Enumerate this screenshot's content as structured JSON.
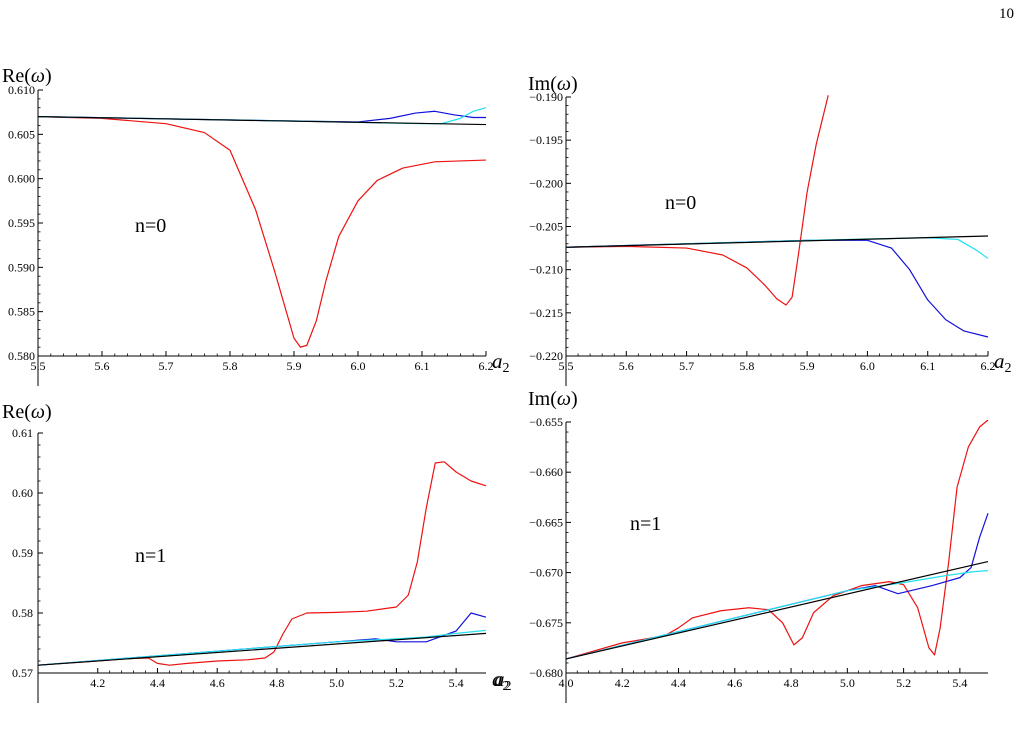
{
  "page": {
    "number": "10"
  },
  "colors": {
    "red": "#ee1111",
    "blue": "#1111dd",
    "cyan": "#22e0f0",
    "black": "#000000"
  },
  "chart_data": [
    {
      "id": "re_n0",
      "type": "line",
      "ylabel_main": "Re(",
      "ylabel_sym": "ω",
      "ylabel_close": ")",
      "xlabel_main": "a",
      "xlabel_sub": "2",
      "annotation": "n=0",
      "xlim": [
        5.5,
        6.2
      ],
      "ylim": [
        0.58,
        0.61
      ],
      "xticks": [
        5.5,
        5.6,
        5.7,
        5.8,
        5.9,
        6.0,
        6.1,
        6.2
      ],
      "xtick_labels": [
        "5.5",
        "5.6",
        "5.7",
        "5.8",
        "5.9",
        "6.0",
        "6.1",
        "6.2"
      ],
      "yticks": [
        0.58,
        0.585,
        0.59,
        0.595,
        0.6,
        0.605,
        0.61
      ],
      "ytick_labels": [
        "0.580",
        "0.585",
        "0.590",
        "0.595",
        "0.600",
        "0.605",
        "0.610"
      ],
      "series": [
        {
          "color": "red",
          "points": [
            [
              5.5,
              0.607
            ],
            [
              5.6,
              0.6068
            ],
            [
              5.7,
              0.6062
            ],
            [
              5.76,
              0.6052
            ],
            [
              5.8,
              0.6032
            ],
            [
              5.84,
              0.5965
            ],
            [
              5.87,
              0.5895
            ],
            [
              5.89,
              0.5845
            ],
            [
              5.9,
              0.582
            ],
            [
              5.91,
              0.581
            ],
            [
              5.92,
              0.5812
            ],
            [
              5.935,
              0.584
            ],
            [
              5.95,
              0.5885
            ],
            [
              5.97,
              0.5935
            ],
            [
              6.0,
              0.5975
            ],
            [
              6.03,
              0.5998
            ],
            [
              6.07,
              0.6012
            ],
            [
              6.12,
              0.6019
            ],
            [
              6.2,
              0.6021
            ]
          ]
        },
        {
          "color": "blue",
          "points": [
            [
              5.5,
              0.607
            ],
            [
              5.9,
              0.6065
            ],
            [
              6.0,
              0.6064
            ],
            [
              6.05,
              0.6068
            ],
            [
              6.09,
              0.6074
            ],
            [
              6.12,
              0.6076
            ],
            [
              6.15,
              0.6072
            ],
            [
              6.18,
              0.6069
            ],
            [
              6.2,
              0.6069
            ]
          ]
        },
        {
          "color": "cyan",
          "points": [
            [
              5.5,
              0.607
            ],
            [
              5.9,
              0.6065
            ],
            [
              6.1,
              0.6062
            ],
            [
              6.13,
              0.6062
            ],
            [
              6.16,
              0.6068
            ],
            [
              6.18,
              0.6076
            ],
            [
              6.2,
              0.608
            ]
          ]
        },
        {
          "color": "black",
          "points": [
            [
              5.5,
              0.607
            ],
            [
              6.2,
              0.6061
            ]
          ]
        }
      ]
    },
    {
      "id": "im_n0",
      "type": "line",
      "ylabel_main": "Im(",
      "ylabel_sym": "ω",
      "ylabel_close": ")",
      "xlabel_main": "a",
      "xlabel_sub": "2",
      "annotation": "n=0",
      "xlim": [
        5.5,
        6.2
      ],
      "ylim": [
        -0.22,
        -0.19
      ],
      "xticks": [
        5.5,
        5.6,
        5.7,
        5.8,
        5.9,
        6.0,
        6.1,
        6.2
      ],
      "xtick_labels": [
        "5.5",
        "5.6",
        "5.7",
        "5.8",
        "5.9",
        "6.0",
        "6.1",
        "6.2"
      ],
      "yticks": [
        -0.22,
        -0.215,
        -0.21,
        -0.205,
        -0.2,
        -0.195,
        -0.19
      ],
      "ytick_labels": [
        "−0.220",
        "−0.215",
        "−0.210",
        "−0.205",
        "−0.200",
        "−0.195",
        "−0.190"
      ],
      "series": [
        {
          "color": "red",
          "points": [
            [
              5.5,
              -0.2074
            ],
            [
              5.6,
              -0.2073
            ],
            [
              5.7,
              -0.2075
            ],
            [
              5.76,
              -0.2083
            ],
            [
              5.8,
              -0.2098
            ],
            [
              5.83,
              -0.2118
            ],
            [
              5.85,
              -0.2134
            ],
            [
              5.865,
              -0.2141
            ],
            [
              5.875,
              -0.2132
            ],
            [
              5.885,
              -0.2085
            ],
            [
              5.9,
              -0.201
            ],
            [
              5.915,
              -0.1955
            ],
            [
              5.935,
              -0.1898
            ]
          ]
        },
        {
          "color": "blue",
          "points": [
            [
              5.5,
              -0.2074
            ],
            [
              5.9,
              -0.2066
            ],
            [
              6.0,
              -0.2066
            ],
            [
              6.04,
              -0.2075
            ],
            [
              6.07,
              -0.21
            ],
            [
              6.1,
              -0.2135
            ],
            [
              6.13,
              -0.2158
            ],
            [
              6.16,
              -0.2171
            ],
            [
              6.2,
              -0.2178
            ]
          ]
        },
        {
          "color": "cyan",
          "points": [
            [
              5.5,
              -0.2074
            ],
            [
              5.9,
              -0.2066
            ],
            [
              6.1,
              -0.2063
            ],
            [
              6.15,
              -0.2065
            ],
            [
              6.18,
              -0.2077
            ],
            [
              6.2,
              -0.2087
            ]
          ]
        },
        {
          "color": "black",
          "points": [
            [
              5.5,
              -0.2074
            ],
            [
              6.2,
              -0.2061
            ]
          ]
        }
      ]
    },
    {
      "id": "re_n1",
      "type": "line",
      "ylabel_main": "Re(",
      "ylabel_sym": "ω",
      "ylabel_close": ")",
      "xlabel_main": "a",
      "xlabel_sub": "2",
      "annotation": "n=1",
      "xlim": [
        4.0,
        5.5
      ],
      "ylim": [
        0.57,
        0.61
      ],
      "xticks": [
        4.2,
        4.4,
        4.6,
        4.8,
        5.0,
        5.2,
        5.4
      ],
      "xtick_labels": [
        "4.2",
        "4.4",
        "4.6",
        "4.8",
        "5.0",
        "5.2",
        "5.4"
      ],
      "yticks": [
        0.57,
        0.58,
        0.59,
        0.6,
        0.61
      ],
      "ytick_labels": [
        "0.57",
        "0.58",
        "0.59",
        "0.60",
        "0.61"
      ],
      "series": [
        {
          "color": "red",
          "points": [
            [
              4.0,
              0.5713
            ],
            [
              4.2,
              0.572
            ],
            [
              4.3,
              0.5724
            ],
            [
              4.37,
              0.5725
            ],
            [
              4.4,
              0.5716
            ],
            [
              4.44,
              0.5713
            ],
            [
              4.5,
              0.5716
            ],
            [
              4.6,
              0.572
            ],
            [
              4.7,
              0.5722
            ],
            [
              4.76,
              0.5725
            ],
            [
              4.79,
              0.5735
            ],
            [
              4.82,
              0.5765
            ],
            [
              4.85,
              0.579
            ],
            [
              4.9,
              0.58
            ],
            [
              5.0,
              0.5801
            ],
            [
              5.1,
              0.5803
            ],
            [
              5.2,
              0.581
            ],
            [
              5.24,
              0.583
            ],
            [
              5.27,
              0.5885
            ],
            [
              5.3,
              0.5975
            ],
            [
              5.33,
              0.605
            ],
            [
              5.36,
              0.6052
            ],
            [
              5.4,
              0.6035
            ],
            [
              5.45,
              0.602
            ],
            [
              5.5,
              0.6012
            ]
          ]
        },
        {
          "color": "blue",
          "points": [
            [
              4.0,
              0.5713
            ],
            [
              5.0,
              0.5752
            ],
            [
              5.13,
              0.5757
            ],
            [
              5.2,
              0.5752
            ],
            [
              5.3,
              0.5752
            ],
            [
              5.4,
              0.577
            ],
            [
              5.45,
              0.58
            ],
            [
              5.5,
              0.5793
            ]
          ]
        },
        {
          "color": "cyan",
          "points": [
            [
              4.0,
              0.5713
            ],
            [
              5.0,
              0.5752
            ],
            [
              5.2,
              0.5757
            ],
            [
              5.3,
              0.576
            ],
            [
              5.4,
              0.5766
            ],
            [
              5.5,
              0.5771
            ]
          ]
        },
        {
          "color": "black",
          "points": [
            [
              4.0,
              0.5713
            ],
            [
              5.5,
              0.5766
            ]
          ]
        }
      ]
    },
    {
      "id": "im_n1",
      "type": "line",
      "ylabel_main": "Im(",
      "ylabel_sym": "ω",
      "ylabel_close": ")",
      "xlabel_main": "a",
      "xlabel_sub": "2",
      "annotation": "n=1",
      "xlim": [
        4.0,
        5.5
      ],
      "ylim": [
        -0.68,
        -0.655
      ],
      "xticks": [
        4.0,
        4.2,
        4.4,
        4.6,
        4.8,
        5.0,
        5.2,
        5.4
      ],
      "xtick_labels": [
        "4.0",
        "4.2",
        "4.4",
        "4.6",
        "4.8",
        "5.0",
        "5.2",
        "5.4"
      ],
      "yticks": [
        -0.68,
        -0.675,
        -0.67,
        -0.665,
        -0.66,
        -0.655
      ],
      "ytick_labels": [
        "−0.680",
        "−0.675",
        "−0.670",
        "−0.665",
        "−0.660",
        "−0.655"
      ],
      "series": [
        {
          "color": "red",
          "points": [
            [
              4.0,
              -0.6786
            ],
            [
              4.2,
              -0.677
            ],
            [
              4.35,
              -0.6763
            ],
            [
              4.4,
              -0.6755
            ],
            [
              4.45,
              -0.6745
            ],
            [
              4.55,
              -0.6738
            ],
            [
              4.65,
              -0.6735
            ],
            [
              4.72,
              -0.6737
            ],
            [
              4.77,
              -0.675
            ],
            [
              4.81,
              -0.6772
            ],
            [
              4.84,
              -0.6765
            ],
            [
              4.88,
              -0.674
            ],
            [
              4.95,
              -0.6723
            ],
            [
              5.05,
              -0.6713
            ],
            [
              5.15,
              -0.6709
            ],
            [
              5.2,
              -0.6712
            ],
            [
              5.25,
              -0.6735
            ],
            [
              5.29,
              -0.6775
            ],
            [
              5.31,
              -0.6782
            ],
            [
              5.33,
              -0.6755
            ],
            [
              5.36,
              -0.669
            ],
            [
              5.39,
              -0.6615
            ],
            [
              5.43,
              -0.6575
            ],
            [
              5.47,
              -0.6555
            ],
            [
              5.5,
              -0.6548
            ]
          ]
        },
        {
          "color": "blue",
          "points": [
            [
              4.0,
              -0.6786
            ],
            [
              5.0,
              -0.6718
            ],
            [
              5.1,
              -0.6713
            ],
            [
              5.14,
              -0.6717
            ],
            [
              5.18,
              -0.6721
            ],
            [
              5.3,
              -0.6713
            ],
            [
              5.4,
              -0.6705
            ],
            [
              5.44,
              -0.6695
            ],
            [
              5.47,
              -0.6665
            ],
            [
              5.5,
              -0.6641
            ]
          ]
        },
        {
          "color": "cyan",
          "points": [
            [
              4.0,
              -0.6786
            ],
            [
              5.0,
              -0.6718
            ],
            [
              5.2,
              -0.671
            ],
            [
              5.35,
              -0.6703
            ],
            [
              5.45,
              -0.6699
            ],
            [
              5.5,
              -0.6698
            ]
          ]
        },
        {
          "color": "black",
          "points": [
            [
              4.0,
              -0.6786
            ],
            [
              5.5,
              -0.6689
            ]
          ]
        }
      ]
    }
  ]
}
